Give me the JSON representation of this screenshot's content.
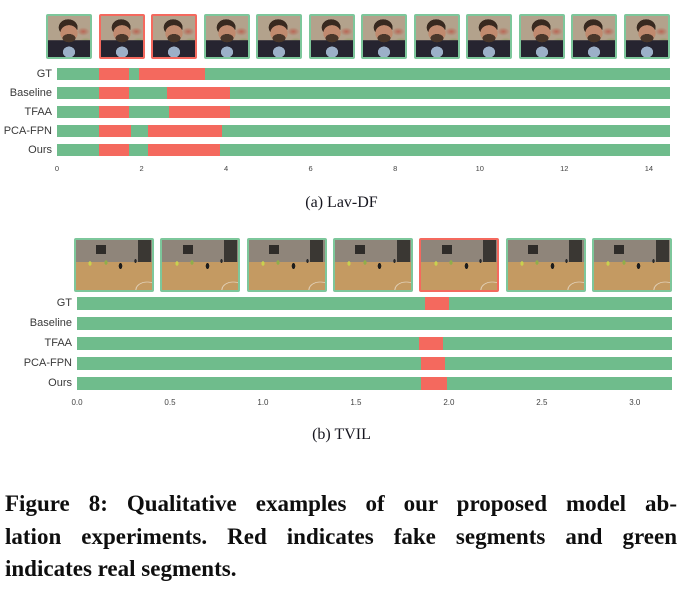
{
  "colors": {
    "real_green": "#6fbc8c",
    "fake_red": "#f4695e",
    "thumb_border_real": "#7dc79b",
    "thumb_border_fake": "#f4695e"
  },
  "chart_data": [
    {
      "type": "bar",
      "subtype": "timeline-segments",
      "dataset": "Lav-DF",
      "panel_label": "(a) Lav-DF",
      "legend": {
        "green": "real segment",
        "red": "fake segment"
      },
      "thumbnails": [
        "real",
        "fake",
        "fake",
        "real",
        "real",
        "real",
        "real",
        "real",
        "real",
        "real",
        "real",
        "real"
      ],
      "rows": [
        {
          "label": "GT",
          "fake_segments": [
            [
              1.0,
              1.7
            ],
            [
              1.95,
              3.5
            ]
          ]
        },
        {
          "label": "Baseline",
          "fake_segments": [
            [
              1.0,
              1.7
            ],
            [
              2.6,
              4.1
            ]
          ]
        },
        {
          "label": "TFAA",
          "fake_segments": [
            [
              1.0,
              1.7
            ],
            [
              2.65,
              4.1
            ]
          ]
        },
        {
          "label": "PCA-FPN",
          "fake_segments": [
            [
              1.0,
              1.75
            ],
            [
              2.15,
              3.9
            ]
          ]
        },
        {
          "label": "Ours",
          "fake_segments": [
            [
              1.0,
              1.7
            ],
            [
              2.15,
              3.85
            ]
          ]
        }
      ],
      "axis": {
        "min": 0,
        "max": 14.5,
        "tick_values": [
          0,
          2,
          4,
          6,
          8,
          10,
          12,
          14
        ],
        "ticks": [
          "0",
          "2",
          "4",
          "6",
          "8",
          "10",
          "12",
          "14"
        ]
      }
    },
    {
      "type": "bar",
      "subtype": "timeline-segments",
      "dataset": "TVIL",
      "panel_label": "(b) TVIL",
      "legend": {
        "green": "real segment",
        "red": "fake segment"
      },
      "thumbnails": [
        "real",
        "real",
        "real",
        "real",
        "fake",
        "real",
        "real"
      ],
      "rows": [
        {
          "label": "GT",
          "fake_segments": [
            [
              1.87,
              2.0
            ]
          ]
        },
        {
          "label": "Baseline",
          "fake_segments": []
        },
        {
          "label": "TFAA",
          "fake_segments": [
            [
              1.84,
              1.97
            ]
          ]
        },
        {
          "label": "PCA-FPN",
          "fake_segments": [
            [
              1.85,
              1.98
            ]
          ]
        },
        {
          "label": "Ours",
          "fake_segments": [
            [
              1.85,
              1.99
            ]
          ]
        }
      ],
      "axis": {
        "min": 0,
        "max": 3.2,
        "tick_values": [
          0.0,
          0.5,
          1.0,
          1.5,
          2.0,
          2.5,
          3.0
        ],
        "ticks": [
          "0.0",
          "0.5",
          "1.0",
          "1.5",
          "2.0",
          "2.5",
          "3.0"
        ]
      }
    }
  ],
  "figure_caption": {
    "lines": [
      "Figure 8: Qualitative examples of our proposed model ab-",
      "lation experiments. Red indicates fake segments and green",
      "indicates real segments."
    ]
  }
}
